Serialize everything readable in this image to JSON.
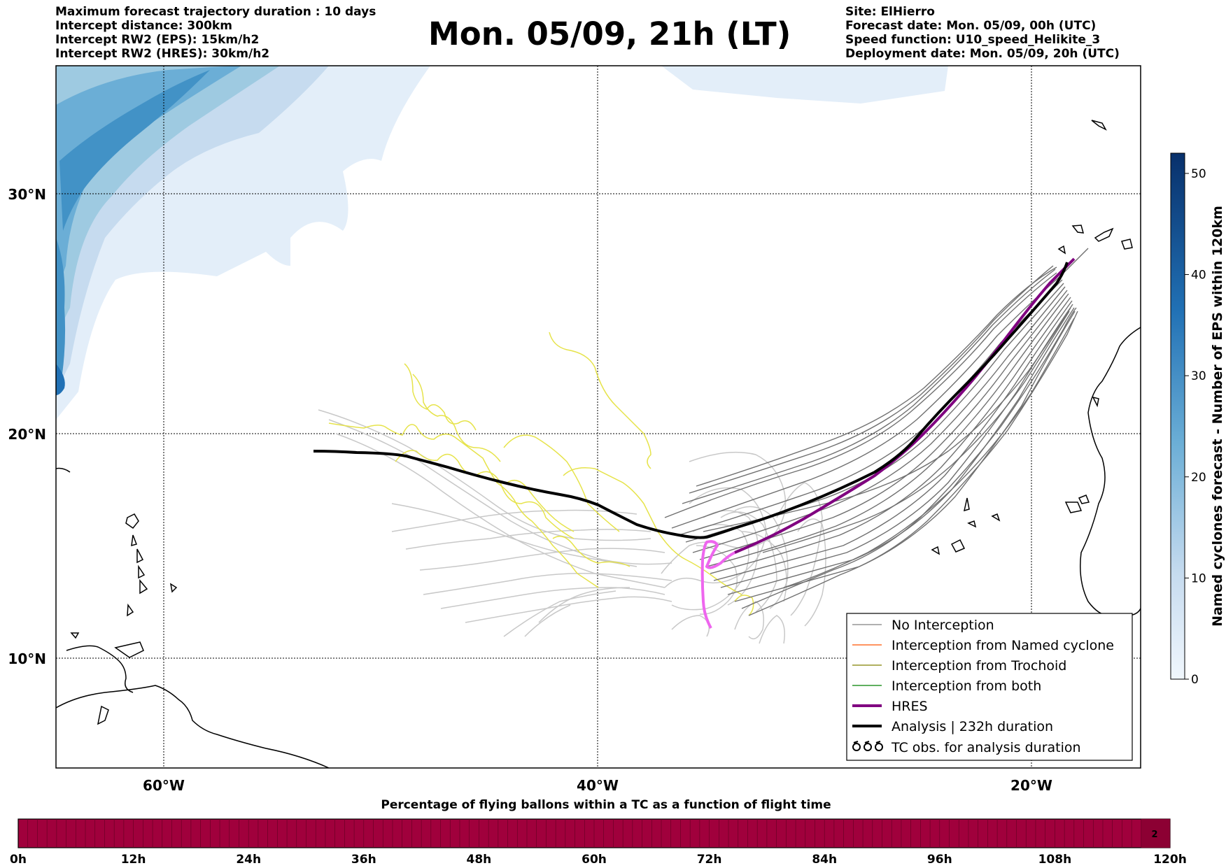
{
  "header_left": [
    "Maximum forecast trajectory duration : 10 days",
    "Intercept distance: 300km",
    "Intercept RW2 (EPS):  15km/h2",
    "Intercept RW2 (HRES): 30km/h2"
  ],
  "title": "Mon. 05/09, 21h (LT)",
  "header_right": [
    "Site: ElHierro",
    "Forecast date: Mon. 05/09, 00h (UTC)",
    "Speed function: U10_speed_Helikite_3",
    "Deployment date: Mon. 05/09, 20h (UTC)"
  ],
  "map": {
    "lat_labels": [
      "30°N",
      "20°N",
      "10°N"
    ],
    "lon_labels": [
      "60°W",
      "40°W",
      "20°W"
    ],
    "lat_values": [
      30,
      20,
      10
    ],
    "lon_values": [
      -60,
      -40,
      -20
    ]
  },
  "legend": {
    "items": [
      {
        "label": "No Interception",
        "color": "#808080",
        "style": "thin"
      },
      {
        "label": "Interception from Named cyclone",
        "color": "#ff5500",
        "style": "thin"
      },
      {
        "label": "Interception from Trochoid",
        "color": "#808000",
        "style": "thin"
      },
      {
        "label": "Interception from both",
        "color": "#008000",
        "style": "thin"
      },
      {
        "label": "HRES",
        "color": "#800080",
        "style": "thick"
      },
      {
        "label": "Analysis | 232h duration",
        "color": "#000000",
        "style": "thick"
      },
      {
        "label": "TC obs. for analysis duration",
        "color": "#000000",
        "style": "symbol"
      }
    ]
  },
  "colorbar": {
    "label": "Named cyclones forecast - Number of EPS within 120km",
    "ticks": [
      "0",
      "10",
      "20",
      "30",
      "40",
      "50"
    ],
    "tick_values": [
      0,
      10,
      20,
      30,
      40,
      50
    ],
    "max": 52,
    "color_low": "#e3eef9",
    "color_high": "#08306b"
  },
  "bottom_bar": {
    "title": "Percentage of flying ballons within a TC as a function of flight time",
    "ticks": [
      "0h",
      "12h",
      "24h",
      "36h",
      "48h",
      "60h",
      "72h",
      "84h",
      "96h",
      "108h",
      "120h"
    ],
    "last_cell_value": "2",
    "fill_color": "#a0003c"
  },
  "colors": {
    "analysis": "#000000",
    "hres": "#800080",
    "hres_early": "#ee66ee",
    "eps_intercept_free": "#707070",
    "eps_light": "#c8c8c8",
    "trochoid_yellow": "#e6e34a"
  }
}
